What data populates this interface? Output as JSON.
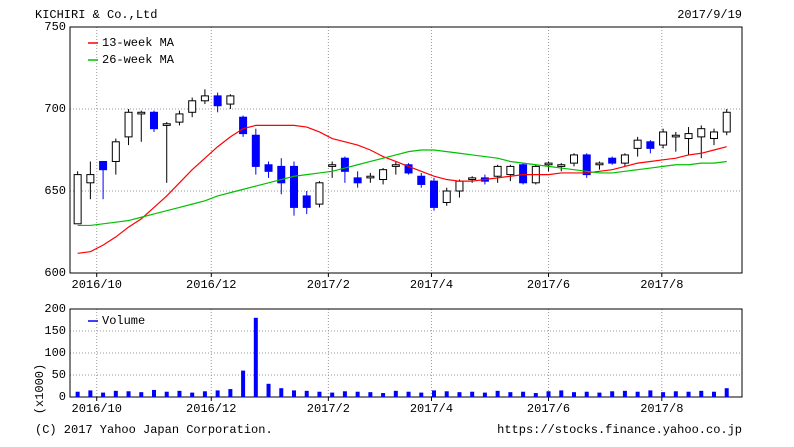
{
  "chart_data": [
    {
      "type": "candlestick",
      "title": "KICHIRI & Co.,Ltd",
      "subtitle": "2017/9/19",
      "x": [
        0,
        1,
        2,
        3,
        4,
        5,
        6,
        7,
        8,
        9,
        10,
        11,
        12,
        13,
        14,
        15,
        16,
        17,
        18,
        19,
        20,
        21,
        22,
        23,
        24,
        25,
        26,
        27,
        28,
        29,
        30,
        31,
        32,
        33,
        34,
        35,
        36,
        37,
        38,
        39,
        40,
        41,
        42,
        43,
        44,
        45,
        46,
        47,
        48,
        49,
        50,
        51
      ],
      "open": [
        630,
        655,
        668,
        668,
        683,
        697,
        698,
        690,
        692,
        698,
        705,
        708,
        703,
        695,
        684,
        666,
        665,
        665,
        647,
        642,
        665,
        670,
        658,
        658,
        657,
        665,
        666,
        659,
        656,
        643,
        650,
        657,
        658,
        659,
        660,
        666,
        655,
        666,
        665,
        667,
        672,
        666,
        670,
        667,
        676,
        680,
        678,
        683,
        682,
        683,
        682,
        686
      ],
      "high": [
        662,
        668,
        668,
        682,
        700,
        699,
        699,
        692,
        699,
        707,
        712,
        710,
        709,
        696,
        688,
        668,
        670,
        668,
        650,
        656,
        668,
        671,
        662,
        661,
        664,
        668,
        667,
        661,
        658,
        652,
        657,
        659,
        660,
        666,
        666,
        667,
        666,
        668,
        667,
        673,
        673,
        668,
        671,
        673,
        683,
        681,
        688,
        686,
        689,
        690,
        688,
        700
      ],
      "low": [
        630,
        645,
        645,
        660,
        678,
        680,
        686,
        655,
        690,
        695,
        703,
        698,
        700,
        683,
        660,
        658,
        648,
        635,
        636,
        640,
        658,
        655,
        652,
        655,
        654,
        660,
        660,
        652,
        638,
        641,
        646,
        655,
        654,
        655,
        656,
        654,
        654,
        662,
        662,
        665,
        658,
        663,
        666,
        665,
        671,
        673,
        676,
        674,
        672,
        670,
        678,
        684
      ],
      "close": [
        660,
        660,
        663,
        680,
        698,
        698,
        688,
        691,
        697,
        705,
        708,
        702,
        708,
        685,
        665,
        662,
        655,
        640,
        640,
        655,
        666,
        662,
        655,
        659,
        663,
        666,
        661,
        654,
        640,
        650,
        656,
        658,
        656,
        665,
        665,
        655,
        665,
        667,
        666,
        672,
        660,
        667,
        667,
        672,
        681,
        676,
        686,
        684,
        685,
        688,
        686,
        698
      ],
      "up_color": "#ffffff",
      "down_color": "#0000ff",
      "series": [
        {
          "name": "13-week MA",
          "color": "#ff0000",
          "values": [
            612,
            613,
            617,
            622,
            628,
            633,
            640,
            647,
            655,
            663,
            670,
            677,
            683,
            688,
            690,
            690,
            690,
            690,
            689,
            686,
            682,
            680,
            678,
            675,
            671,
            668,
            665,
            662,
            659,
            657,
            656,
            656,
            657,
            658,
            659,
            660,
            660,
            660,
            661,
            661,
            661,
            662,
            663,
            665,
            667,
            668,
            669,
            670,
            672,
            673,
            675,
            677
          ]
        },
        {
          "name": "26-week MA",
          "color": "#00c000",
          "values": [
            629,
            629,
            630,
            631,
            632,
            634,
            636,
            638,
            640,
            642,
            644,
            647,
            649,
            651,
            653,
            655,
            657,
            659,
            660,
            661,
            662,
            664,
            666,
            668,
            670,
            672,
            674,
            675,
            675,
            674,
            673,
            672,
            671,
            670,
            668,
            667,
            666,
            665,
            664,
            663,
            662,
            661,
            661,
            662,
            663,
            664,
            665,
            666,
            666,
            667,
            667,
            668
          ]
        }
      ],
      "xlim": [
        -0.6,
        52.2
      ],
      "xticks": [
        {
          "value": 1.5,
          "label": "2016/10"
        },
        {
          "value": 10.5,
          "label": "2016/12"
        },
        {
          "value": 19.7,
          "label": "2017/2"
        },
        {
          "value": 27.8,
          "label": "2017/4"
        },
        {
          "value": 37.0,
          "label": "2017/6"
        },
        {
          "value": 45.9,
          "label": "2017/8"
        }
      ],
      "ylim": [
        600,
        750
      ],
      "yticks": [
        600,
        650,
        700,
        750
      ],
      "grid": true
    },
    {
      "type": "bar",
      "ylabel": "(x1000)",
      "x": [
        0,
        1,
        2,
        3,
        4,
        5,
        6,
        7,
        8,
        9,
        10,
        11,
        12,
        13,
        14,
        15,
        16,
        17,
        18,
        19,
        20,
        21,
        22,
        23,
        24,
        25,
        26,
        27,
        28,
        29,
        30,
        31,
        32,
        33,
        34,
        35,
        36,
        37,
        38,
        39,
        40,
        41,
        42,
        43,
        44,
        45,
        46,
        47,
        48,
        49,
        50,
        51
      ],
      "series": [
        {
          "name": "Volume",
          "color": "#0000ff",
          "values": [
            12,
            15,
            10,
            14,
            13,
            11,
            16,
            12,
            14,
            10,
            13,
            15,
            18,
            60,
            180,
            30,
            20,
            15,
            14,
            12,
            10,
            13,
            12,
            11,
            9,
            14,
            12,
            10,
            15,
            13,
            11,
            12,
            10,
            14,
            11,
            12,
            9,
            13,
            15,
            11,
            12,
            10,
            13,
            14,
            12,
            15,
            11,
            13,
            12,
            14,
            12,
            20
          ]
        }
      ],
      "xlim": [
        -0.6,
        52.2
      ],
      "xticks": [
        {
          "value": 1.5,
          "label": "2016/10"
        },
        {
          "value": 10.5,
          "label": "2016/12"
        },
        {
          "value": 19.7,
          "label": "2017/2"
        },
        {
          "value": 27.8,
          "label": "2017/4"
        },
        {
          "value": 37.0,
          "label": "2017/6"
        },
        {
          "value": 45.9,
          "label": "2017/8"
        }
      ],
      "ylim": [
        0,
        200
      ],
      "yticks": [
        0,
        50,
        100,
        150,
        200
      ],
      "grid": true
    }
  ],
  "footer": {
    "copyright": "(C) 2017 Yahoo Japan Corporation.",
    "url": "https://stocks.finance.yahoo.co.jp"
  }
}
